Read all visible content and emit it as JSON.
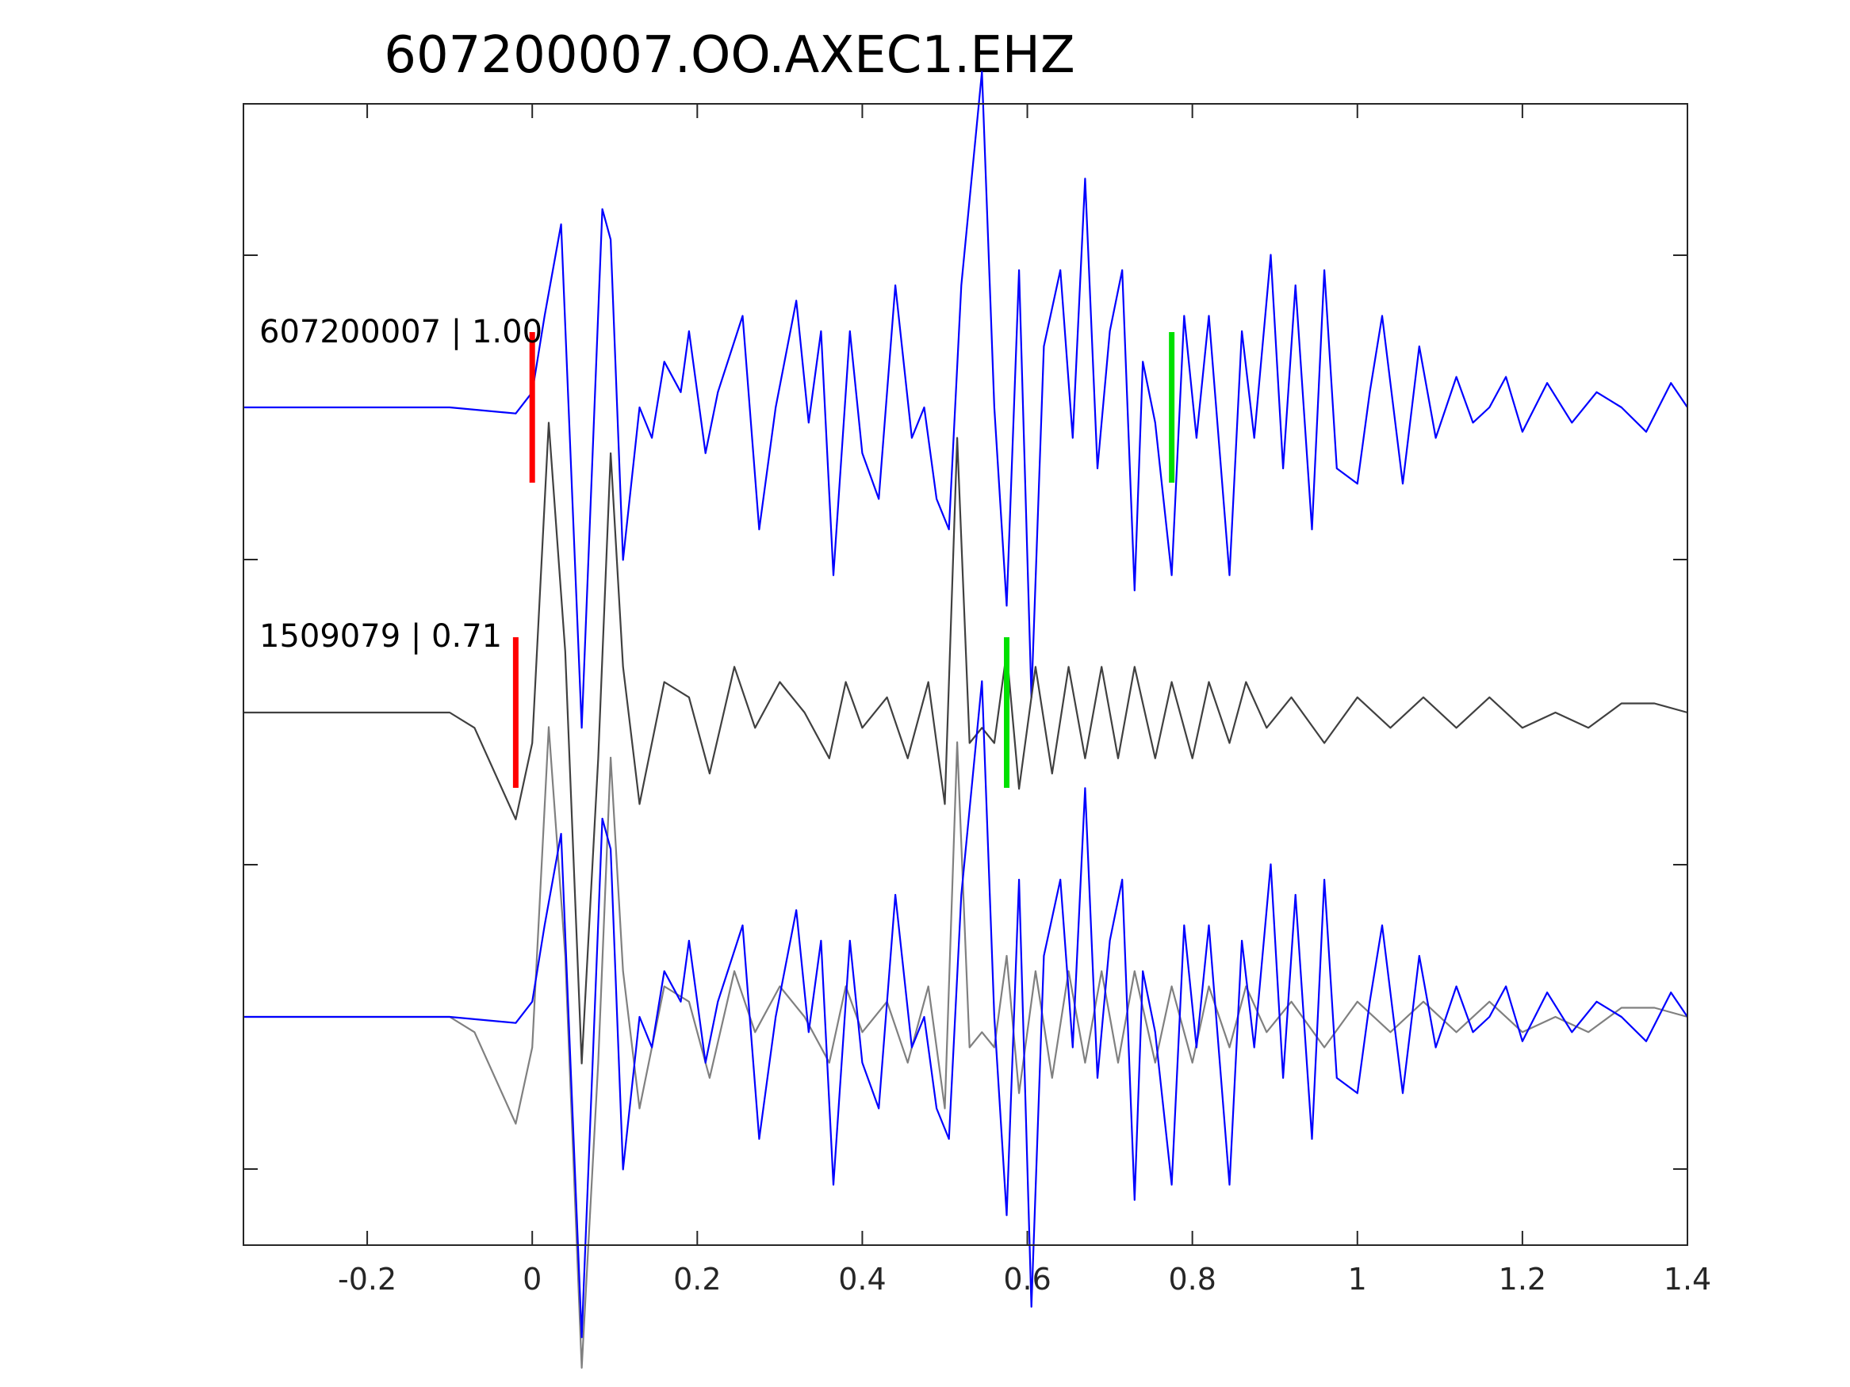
{
  "chart_data": {
    "type": "line",
    "title": "607200007.OO.AXEC1.EHZ",
    "xlabel": "",
    "ylabel": "",
    "xlim": [
      -0.35,
      1.4
    ],
    "xticks": [
      -0.2,
      0,
      0.2,
      0.4,
      0.6,
      0.8,
      1,
      1.2,
      1.4
    ],
    "xtick_labels": [
      "-0.2",
      "0",
      "0.2",
      "0.4",
      "0.6",
      "0.8",
      "1",
      "1.2",
      "1.4"
    ],
    "grid": false,
    "colors": {
      "master": "#0000ff",
      "neighbor": "#404040",
      "overlay_neighbor": "#808080",
      "p_pick": "#ff0000",
      "s_pick": "#00e000",
      "axes": "#262626"
    },
    "traces": [
      {
        "label": "607200007 | 1.00",
        "series": [
          "master"
        ],
        "p_pick": 0.0,
        "s_pick": 0.775
      },
      {
        "label": "1509079 | 0.71",
        "series": [
          "neighbor"
        ],
        "p_pick": -0.02,
        "s_pick": 0.575
      },
      {
        "label": "",
        "series": [
          "neighbor_overlay",
          "master"
        ]
      }
    ],
    "series": [
      {
        "id": "master",
        "x": [
          -0.35,
          -0.1,
          -0.02,
          0.0,
          0.015,
          0.035,
          0.06,
          0.085,
          0.095,
          0.11,
          0.13,
          0.145,
          0.16,
          0.18,
          0.19,
          0.21,
          0.225,
          0.255,
          0.275,
          0.295,
          0.32,
          0.335,
          0.35,
          0.365,
          0.385,
          0.4,
          0.42,
          0.44,
          0.46,
          0.475,
          0.49,
          0.505,
          0.52,
          0.545,
          0.56,
          0.575,
          0.59,
          0.605,
          0.62,
          0.64,
          0.655,
          0.67,
          0.685,
          0.7,
          0.715,
          0.73,
          0.74,
          0.755,
          0.775,
          0.79,
          0.805,
          0.82,
          0.845,
          0.86,
          0.875,
          0.895,
          0.91,
          0.925,
          0.945,
          0.96,
          0.975,
          1.0,
          1.015,
          1.03,
          1.055,
          1.075,
          1.095,
          1.12,
          1.14,
          1.16,
          1.18,
          1.2,
          1.23,
          1.26,
          1.29,
          1.32,
          1.35,
          1.38,
          1.4
        ],
        "y": [
          0.0,
          0.0,
          -0.02,
          0.05,
          0.3,
          0.6,
          -1.05,
          0.65,
          0.55,
          -0.5,
          0.0,
          -0.1,
          0.15,
          0.05,
          0.25,
          -0.15,
          0.05,
          0.3,
          -0.4,
          0.0,
          0.35,
          -0.05,
          0.25,
          -0.55,
          0.25,
          -0.15,
          -0.3,
          0.4,
          -0.1,
          0.0,
          -0.3,
          -0.4,
          0.4,
          1.1,
          0.0,
          -0.65,
          0.45,
          -0.95,
          0.2,
          0.45,
          -0.1,
          0.75,
          -0.2,
          0.25,
          0.45,
          -0.6,
          0.15,
          -0.05,
          -0.55,
          0.3,
          -0.1,
          0.3,
          -0.55,
          0.25,
          -0.1,
          0.5,
          -0.2,
          0.4,
          -0.4,
          0.45,
          -0.2,
          -0.25,
          0.05,
          0.3,
          -0.25,
          0.2,
          -0.1,
          0.1,
          -0.05,
          0.0,
          0.1,
          -0.08,
          0.08,
          -0.05,
          0.05,
          0.0,
          -0.08,
          0.08,
          0.0
        ]
      },
      {
        "id": "neighbor",
        "x": [
          -0.35,
          -0.1,
          -0.07,
          -0.02,
          0.0,
          0.02,
          0.04,
          0.06,
          0.08,
          0.095,
          0.11,
          0.13,
          0.16,
          0.19,
          0.215,
          0.245,
          0.27,
          0.3,
          0.33,
          0.36,
          0.38,
          0.4,
          0.43,
          0.455,
          0.48,
          0.5,
          0.515,
          0.53,
          0.545,
          0.56,
          0.575,
          0.59,
          0.61,
          0.63,
          0.65,
          0.67,
          0.69,
          0.71,
          0.73,
          0.755,
          0.775,
          0.8,
          0.82,
          0.845,
          0.865,
          0.89,
          0.92,
          0.96,
          1.0,
          1.04,
          1.08,
          1.12,
          1.16,
          1.2,
          1.24,
          1.28,
          1.32,
          1.36,
          1.4
        ],
        "y": [
          0.0,
          0.0,
          -0.05,
          -0.35,
          -0.1,
          0.95,
          0.2,
          -1.15,
          -0.15,
          0.85,
          0.15,
          -0.3,
          0.1,
          0.05,
          -0.2,
          0.15,
          -0.05,
          0.1,
          0.0,
          -0.15,
          0.1,
          -0.05,
          0.05,
          -0.15,
          0.1,
          -0.3,
          0.9,
          -0.1,
          -0.05,
          -0.1,
          0.2,
          -0.25,
          0.15,
          -0.2,
          0.15,
          -0.15,
          0.15,
          -0.15,
          0.15,
          -0.15,
          0.1,
          -0.15,
          0.1,
          -0.1,
          0.1,
          -0.05,
          0.05,
          -0.1,
          0.05,
          -0.05,
          0.05,
          -0.05,
          0.05,
          -0.05,
          0.0,
          -0.05,
          0.03,
          0.03,
          0.0
        ]
      },
      {
        "id": "neighbor_overlay",
        "x": [
          -0.35,
          -0.1,
          -0.07,
          -0.02,
          0.0,
          0.02,
          0.04,
          0.06,
          0.08,
          0.095,
          0.11,
          0.13,
          0.16,
          0.19,
          0.215,
          0.245,
          0.27,
          0.3,
          0.33,
          0.36,
          0.38,
          0.4,
          0.43,
          0.455,
          0.48,
          0.5,
          0.515,
          0.53,
          0.545,
          0.56,
          0.575,
          0.59,
          0.61,
          0.63,
          0.65,
          0.67,
          0.69,
          0.71,
          0.73,
          0.755,
          0.775,
          0.8,
          0.82,
          0.845,
          0.865,
          0.89,
          0.92,
          0.96,
          1.0,
          1.04,
          1.08,
          1.12,
          1.16,
          1.2,
          1.24,
          1.28,
          1.32,
          1.36,
          1.4
        ],
        "y": [
          0.0,
          0.0,
          -0.05,
          -0.35,
          -0.1,
          0.95,
          0.2,
          -1.15,
          -0.15,
          0.85,
          0.15,
          -0.3,
          0.1,
          0.05,
          -0.2,
          0.15,
          -0.05,
          0.1,
          0.0,
          -0.15,
          0.1,
          -0.05,
          0.05,
          -0.15,
          0.1,
          -0.3,
          0.9,
          -0.1,
          -0.05,
          -0.1,
          0.2,
          -0.25,
          0.15,
          -0.2,
          0.15,
          -0.15,
          0.15,
          -0.15,
          0.15,
          -0.15,
          0.1,
          -0.15,
          0.1,
          -0.1,
          0.1,
          -0.05,
          0.05,
          -0.1,
          0.05,
          -0.05,
          0.05,
          -0.05,
          0.05,
          -0.05,
          0.0,
          -0.05,
          0.03,
          0.03,
          0.0
        ]
      }
    ]
  }
}
